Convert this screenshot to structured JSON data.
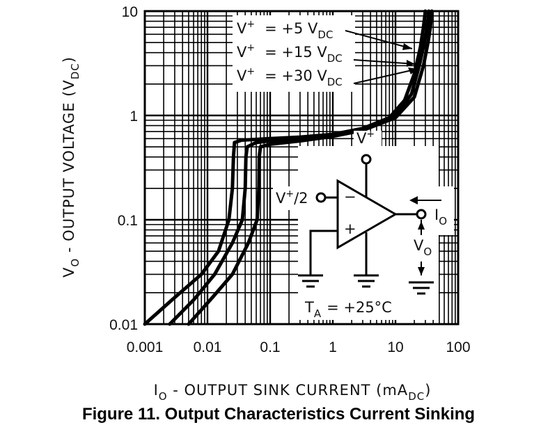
{
  "chart_data": {
    "type": "line",
    "x_scale": "log",
    "y_scale": "log",
    "xlim": [
      0.001,
      100
    ],
    "ylim": [
      0.01,
      10
    ],
    "grid": true,
    "x_ticks": [
      "0.001",
      "0.01",
      "0.1",
      "1",
      "10",
      "100"
    ],
    "y_ticks": [
      "0.01",
      "0.1",
      "1",
      "10"
    ],
    "xlabel": {
      "prefix": "I",
      "sub": "O",
      "main": " - OUTPUT SINK CURRENT (mA",
      "unit_sub": "DC",
      "suffix": ")"
    },
    "ylabel": {
      "prefix": "V",
      "sub": "O",
      "main": " - OUTPUT VOLTAGE (V",
      "unit_sub": "DC",
      "suffix": ")"
    },
    "series": [
      {
        "name": "V+ = +5 VDC",
        "points": [
          [
            0.001,
            0.01
          ],
          [
            0.003,
            0.018
          ],
          [
            0.008,
            0.03
          ],
          [
            0.015,
            0.05
          ],
          [
            0.022,
            0.1
          ],
          [
            0.025,
            0.2
          ],
          [
            0.026,
            0.4
          ],
          [
            0.027,
            0.55
          ],
          [
            0.035,
            0.58
          ],
          [
            0.1,
            0.6
          ],
          [
            0.3,
            0.62
          ],
          [
            1,
            0.66
          ],
          [
            3,
            0.75
          ],
          [
            8,
            0.95
          ],
          [
            14,
            1.4
          ],
          [
            20,
            2.5
          ],
          [
            25,
            4.5
          ],
          [
            28,
            7
          ],
          [
            30,
            10
          ]
        ]
      },
      {
        "name": "V+ = +15 VDC",
        "points": [
          [
            0.0025,
            0.01
          ],
          [
            0.006,
            0.017
          ],
          [
            0.013,
            0.03
          ],
          [
            0.025,
            0.06
          ],
          [
            0.036,
            0.1
          ],
          [
            0.04,
            0.2
          ],
          [
            0.041,
            0.4
          ],
          [
            0.043,
            0.5
          ],
          [
            0.06,
            0.55
          ],
          [
            0.1,
            0.57
          ],
          [
            0.3,
            0.6
          ],
          [
            1,
            0.65
          ],
          [
            3,
            0.74
          ],
          [
            10,
            1
          ],
          [
            18,
            1.6
          ],
          [
            24,
            3
          ],
          [
            29,
            5
          ],
          [
            32,
            7
          ],
          [
            34,
            10
          ]
        ]
      },
      {
        "name": "V+ = +30 VDC",
        "points": [
          [
            0.005,
            0.01
          ],
          [
            0.012,
            0.018
          ],
          [
            0.025,
            0.03
          ],
          [
            0.045,
            0.06
          ],
          [
            0.062,
            0.1
          ],
          [
            0.066,
            0.2
          ],
          [
            0.067,
            0.4
          ],
          [
            0.07,
            0.5
          ],
          [
            0.1,
            0.53
          ],
          [
            0.3,
            0.57
          ],
          [
            1,
            0.63
          ],
          [
            3,
            0.72
          ],
          [
            10,
            0.95
          ],
          [
            20,
            1.5
          ],
          [
            28,
            3
          ],
          [
            33,
            5
          ],
          [
            36,
            7
          ],
          [
            38,
            10
          ]
        ]
      }
    ],
    "legend": [
      {
        "name": "V+",
        "sup": "+",
        "eq": "= +5 V",
        "sub": "DC"
      },
      {
        "name": "V+",
        "sup": "+",
        "eq": "= +15 V",
        "sub": "DC"
      },
      {
        "name": "V+",
        "sup": "+",
        "eq": "= +30 V",
        "sub": "DC"
      }
    ],
    "inset": {
      "supply_label": "V",
      "supply_sup": "+",
      "input_label": "V",
      "input_sup": "+",
      "input_suffix": "/2",
      "minus": "−",
      "plus": "+",
      "out_current": "I",
      "out_current_sub": "O",
      "out_voltage": "V",
      "out_voltage_sub": "O",
      "temp_main": "T",
      "temp_sub": "A",
      "temp_value": "= +25°C"
    }
  },
  "caption": "Figure 11. Output Characteristics Current Sinking"
}
